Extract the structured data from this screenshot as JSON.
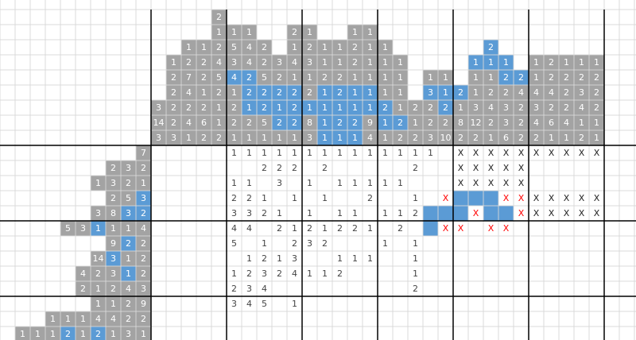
{
  "column_clues": {
    "rows": [
      [
        null,
        null,
        null,
        null,
        "2"
      ],
      [
        null,
        null,
        null,
        null,
        "1",
        "1",
        "1",
        null,
        null,
        "2",
        "1",
        null,
        null,
        "1",
        "1"
      ],
      [
        null,
        null,
        "1",
        "1",
        "2",
        "5",
        "4",
        "2",
        null,
        "1",
        "2",
        "1",
        "1",
        "2",
        "1",
        "1",
        null,
        null,
        null,
        null,
        null,
        null,
        {
          "text": "2",
          "blue": true
        }
      ],
      [
        null,
        "1",
        "2",
        "2",
        "4",
        "3",
        "4",
        "2",
        "3",
        "4",
        "3",
        "1",
        "1",
        "2",
        "1",
        "1",
        "1",
        null,
        null,
        null,
        null,
        {
          "text": "1",
          "blue": true
        },
        {
          "text": "1",
          "blue": true
        },
        {
          "text": "1",
          "blue": true
        },
        null,
        "1",
        "2",
        "1",
        "1",
        "1"
      ],
      [
        null,
        "2",
        "7",
        "2",
        "5",
        {
          "text": "4",
          "blue": true
        },
        {
          "text": "2",
          "blue": true
        },
        "5",
        "2",
        "1",
        "1",
        "2",
        "2",
        "1",
        "1",
        "1",
        "1",
        null,
        "1",
        "1",
        null,
        "1",
        "1",
        {
          "text": "2",
          "blue": true
        },
        {
          "text": "2",
          "blue": true
        },
        "1",
        "2",
        "2",
        "2",
        "2"
      ],
      [
        null,
        "2",
        "4",
        "1",
        "2",
        "1",
        {
          "text": "2",
          "blue": true
        },
        {
          "text": "2",
          "blue": true
        },
        {
          "text": "2",
          "blue": true
        },
        {
          "text": "2",
          "blue": true
        },
        "2",
        {
          "text": "1",
          "blue": true
        },
        {
          "text": "2",
          "blue": true
        },
        {
          "text": "1",
          "blue": true
        },
        {
          "text": "1",
          "blue": true
        },
        "1",
        "1",
        null,
        {
          "text": "3",
          "blue": true
        },
        {
          "text": "1",
          "blue": true
        },
        {
          "text": "2",
          "blue": true
        },
        "1",
        "2",
        "2",
        "4",
        "4",
        "4",
        "2",
        "3",
        "2"
      ],
      [
        "3",
        "2",
        "2",
        "2",
        "1",
        "2",
        {
          "text": "1",
          "blue": true
        },
        {
          "text": "2",
          "blue": true
        },
        {
          "text": "1",
          "blue": true
        },
        {
          "text": "2",
          "blue": true
        },
        {
          "text": "1",
          "blue": true
        },
        {
          "text": "1",
          "blue": true
        },
        {
          "text": "1",
          "blue": true
        },
        {
          "text": "1",
          "blue": true
        },
        {
          "text": "1",
          "blue": true
        },
        {
          "text": "2",
          "blue": true
        },
        "1",
        "2",
        "2",
        {
          "text": "2",
          "blue": true
        },
        "1",
        "3",
        "4",
        "3",
        "2",
        "3",
        "2",
        "2",
        "4",
        "2"
      ],
      [
        "14",
        "2",
        "4",
        "6",
        "1",
        "2",
        "2",
        "5",
        {
          "text": "2",
          "blue": true
        },
        {
          "text": "2",
          "blue": true
        },
        "8",
        {
          "text": "1",
          "blue": true
        },
        {
          "text": "2",
          "blue": true
        },
        {
          "text": "2",
          "blue": true
        },
        "9",
        {
          "text": "1",
          "blue": true
        },
        {
          "text": "2",
          "blue": true
        },
        "1",
        "2",
        "2",
        "8",
        "12",
        "2",
        "3",
        "2",
        "4",
        "6",
        "4",
        "1",
        "1"
      ],
      [
        "3",
        "3",
        "1",
        "2",
        "2",
        "1",
        "1",
        "1",
        "1",
        "1",
        "3",
        {
          "text": "1",
          "blue": true
        },
        {
          "text": "1",
          "blue": true
        },
        {
          "text": "1",
          "blue": true
        },
        "4",
        "1",
        "2",
        "2",
        "3",
        "10",
        "2",
        "2",
        "1",
        "6",
        "2",
        "2",
        "1",
        "1",
        "2",
        "1"
      ]
    ]
  },
  "row_clues": {
    "rows": [
      [
        null,
        null,
        null,
        null,
        null,
        null,
        null,
        null,
        null,
        "7"
      ],
      [
        null,
        null,
        null,
        null,
        null,
        null,
        null,
        "2",
        "3",
        "2"
      ],
      [
        null,
        null,
        null,
        null,
        null,
        null,
        "1",
        "3",
        "2",
        "1"
      ],
      [
        null,
        null,
        null,
        null,
        null,
        null,
        null,
        "2",
        "5",
        {
          "text": "3",
          "blue": true
        }
      ],
      [
        null,
        null,
        null,
        null,
        null,
        null,
        "3",
        "8",
        {
          "text": "3",
          "blue": true
        },
        {
          "text": "2",
          "blue": true
        }
      ],
      [
        null,
        null,
        null,
        null,
        "5",
        "3",
        {
          "text": "1",
          "blue": true
        },
        "1",
        "1",
        "4"
      ],
      [
        null,
        null,
        null,
        null,
        null,
        null,
        null,
        "9",
        {
          "text": "2",
          "blue": true
        },
        "2"
      ],
      [
        null,
        null,
        null,
        null,
        null,
        null,
        "14",
        {
          "text": "3",
          "blue": true
        },
        "1",
        "2"
      ],
      [
        null,
        null,
        null,
        null,
        null,
        "4",
        "2",
        "3",
        {
          "text": "1",
          "blue": true
        },
        "2"
      ],
      [
        null,
        null,
        null,
        null,
        null,
        "2",
        "1",
        "2",
        "4",
        "3"
      ],
      [
        null,
        null,
        null,
        null,
        null,
        null,
        "1",
        "1",
        "2",
        "9"
      ],
      [
        null,
        null,
        null,
        "1",
        "1",
        "1",
        "4",
        "4",
        "2",
        "2"
      ],
      [
        null,
        "1",
        "1",
        "1",
        {
          "text": "2",
          "blue": true
        },
        "1",
        {
          "text": "2",
          "blue": true
        },
        "1",
        "3",
        "1"
      ]
    ]
  },
  "board": {
    "rows": [
      [
        null,
        null,
        null,
        null,
        null,
        "1",
        "1",
        "1",
        "1",
        "1",
        "1",
        "1",
        "1",
        "1",
        "1",
        "1",
        "1",
        "1",
        "1",
        null,
        "X",
        "X",
        "X",
        "X",
        "X",
        "X",
        "X",
        "X",
        "X",
        "X"
      ],
      [
        null,
        null,
        null,
        null,
        null,
        null,
        null,
        "2",
        "2",
        "2",
        null,
        "2",
        null,
        null,
        null,
        null,
        null,
        "2",
        null,
        null,
        "X",
        "X",
        "X",
        "X",
        "X"
      ],
      [
        null,
        null,
        null,
        null,
        null,
        "1",
        "1",
        null,
        "3",
        null,
        "1",
        null,
        "1",
        "1",
        "1",
        "1",
        "1",
        null,
        null,
        null,
        "X",
        "X",
        "X",
        "X",
        "X"
      ],
      [
        null,
        null,
        null,
        null,
        null,
        "2",
        "2",
        "1",
        null,
        "1",
        null,
        "1",
        null,
        null,
        "2",
        null,
        null,
        "1",
        null,
        {
          "text": "X",
          "color": "red"
        },
        {
          "fill": "#5b9bd5"
        },
        {
          "fill": "#5b9bd5"
        },
        {
          "fill": "#5b9bd5"
        },
        {
          "text": "X",
          "color": "red"
        },
        {
          "text": "X",
          "color": "red"
        },
        "X",
        "X",
        "X",
        "X",
        "X"
      ],
      [
        null,
        null,
        null,
        null,
        null,
        "3",
        "3",
        "2",
        "1",
        null,
        "1",
        null,
        "1",
        "1",
        null,
        "1",
        "1",
        "2",
        {
          "fill": "#5b9bd5"
        },
        {
          "fill": "#5b9bd5"
        },
        {
          "fill": "#5b9bd5"
        },
        {
          "text": "X",
          "color": "red"
        },
        {
          "fill": "#5b9bd5"
        },
        {
          "fill": "#5b9bd5"
        },
        {
          "text": "X",
          "color": "red"
        },
        "X",
        "X",
        "X",
        "X",
        "X"
      ],
      [
        null,
        null,
        null,
        null,
        null,
        "4",
        "4",
        null,
        "2",
        "1",
        "2",
        "1",
        "2",
        "2",
        "1",
        null,
        "2",
        null,
        {
          "fill": "#5b9bd5"
        },
        {
          "text": "X",
          "color": "red"
        },
        {
          "text": "X",
          "color": "red"
        },
        null,
        {
          "text": "X",
          "color": "red"
        },
        {
          "text": "X",
          "color": "red"
        }
      ],
      [
        null,
        null,
        null,
        null,
        null,
        "5",
        null,
        "1",
        null,
        "2",
        "3",
        "2",
        null,
        null,
        null,
        "1",
        null,
        "1"
      ],
      [
        null,
        null,
        null,
        null,
        null,
        null,
        "1",
        "2",
        "1",
        "3",
        null,
        null,
        "1",
        "1",
        "1",
        null,
        null,
        "1"
      ],
      [
        null,
        null,
        null,
        null,
        null,
        "1",
        "2",
        "3",
        "2",
        "4",
        "1",
        "1",
        "2",
        null,
        null,
        null,
        null,
        "1"
      ],
      [
        null,
        null,
        null,
        null,
        null,
        "2",
        "3",
        "4",
        null,
        null,
        null,
        null,
        null,
        null,
        null,
        null,
        null,
        "2"
      ],
      [
        null,
        null,
        null,
        null,
        null,
        "3",
        "4",
        "5",
        null,
        "1"
      ]
    ]
  }
}
